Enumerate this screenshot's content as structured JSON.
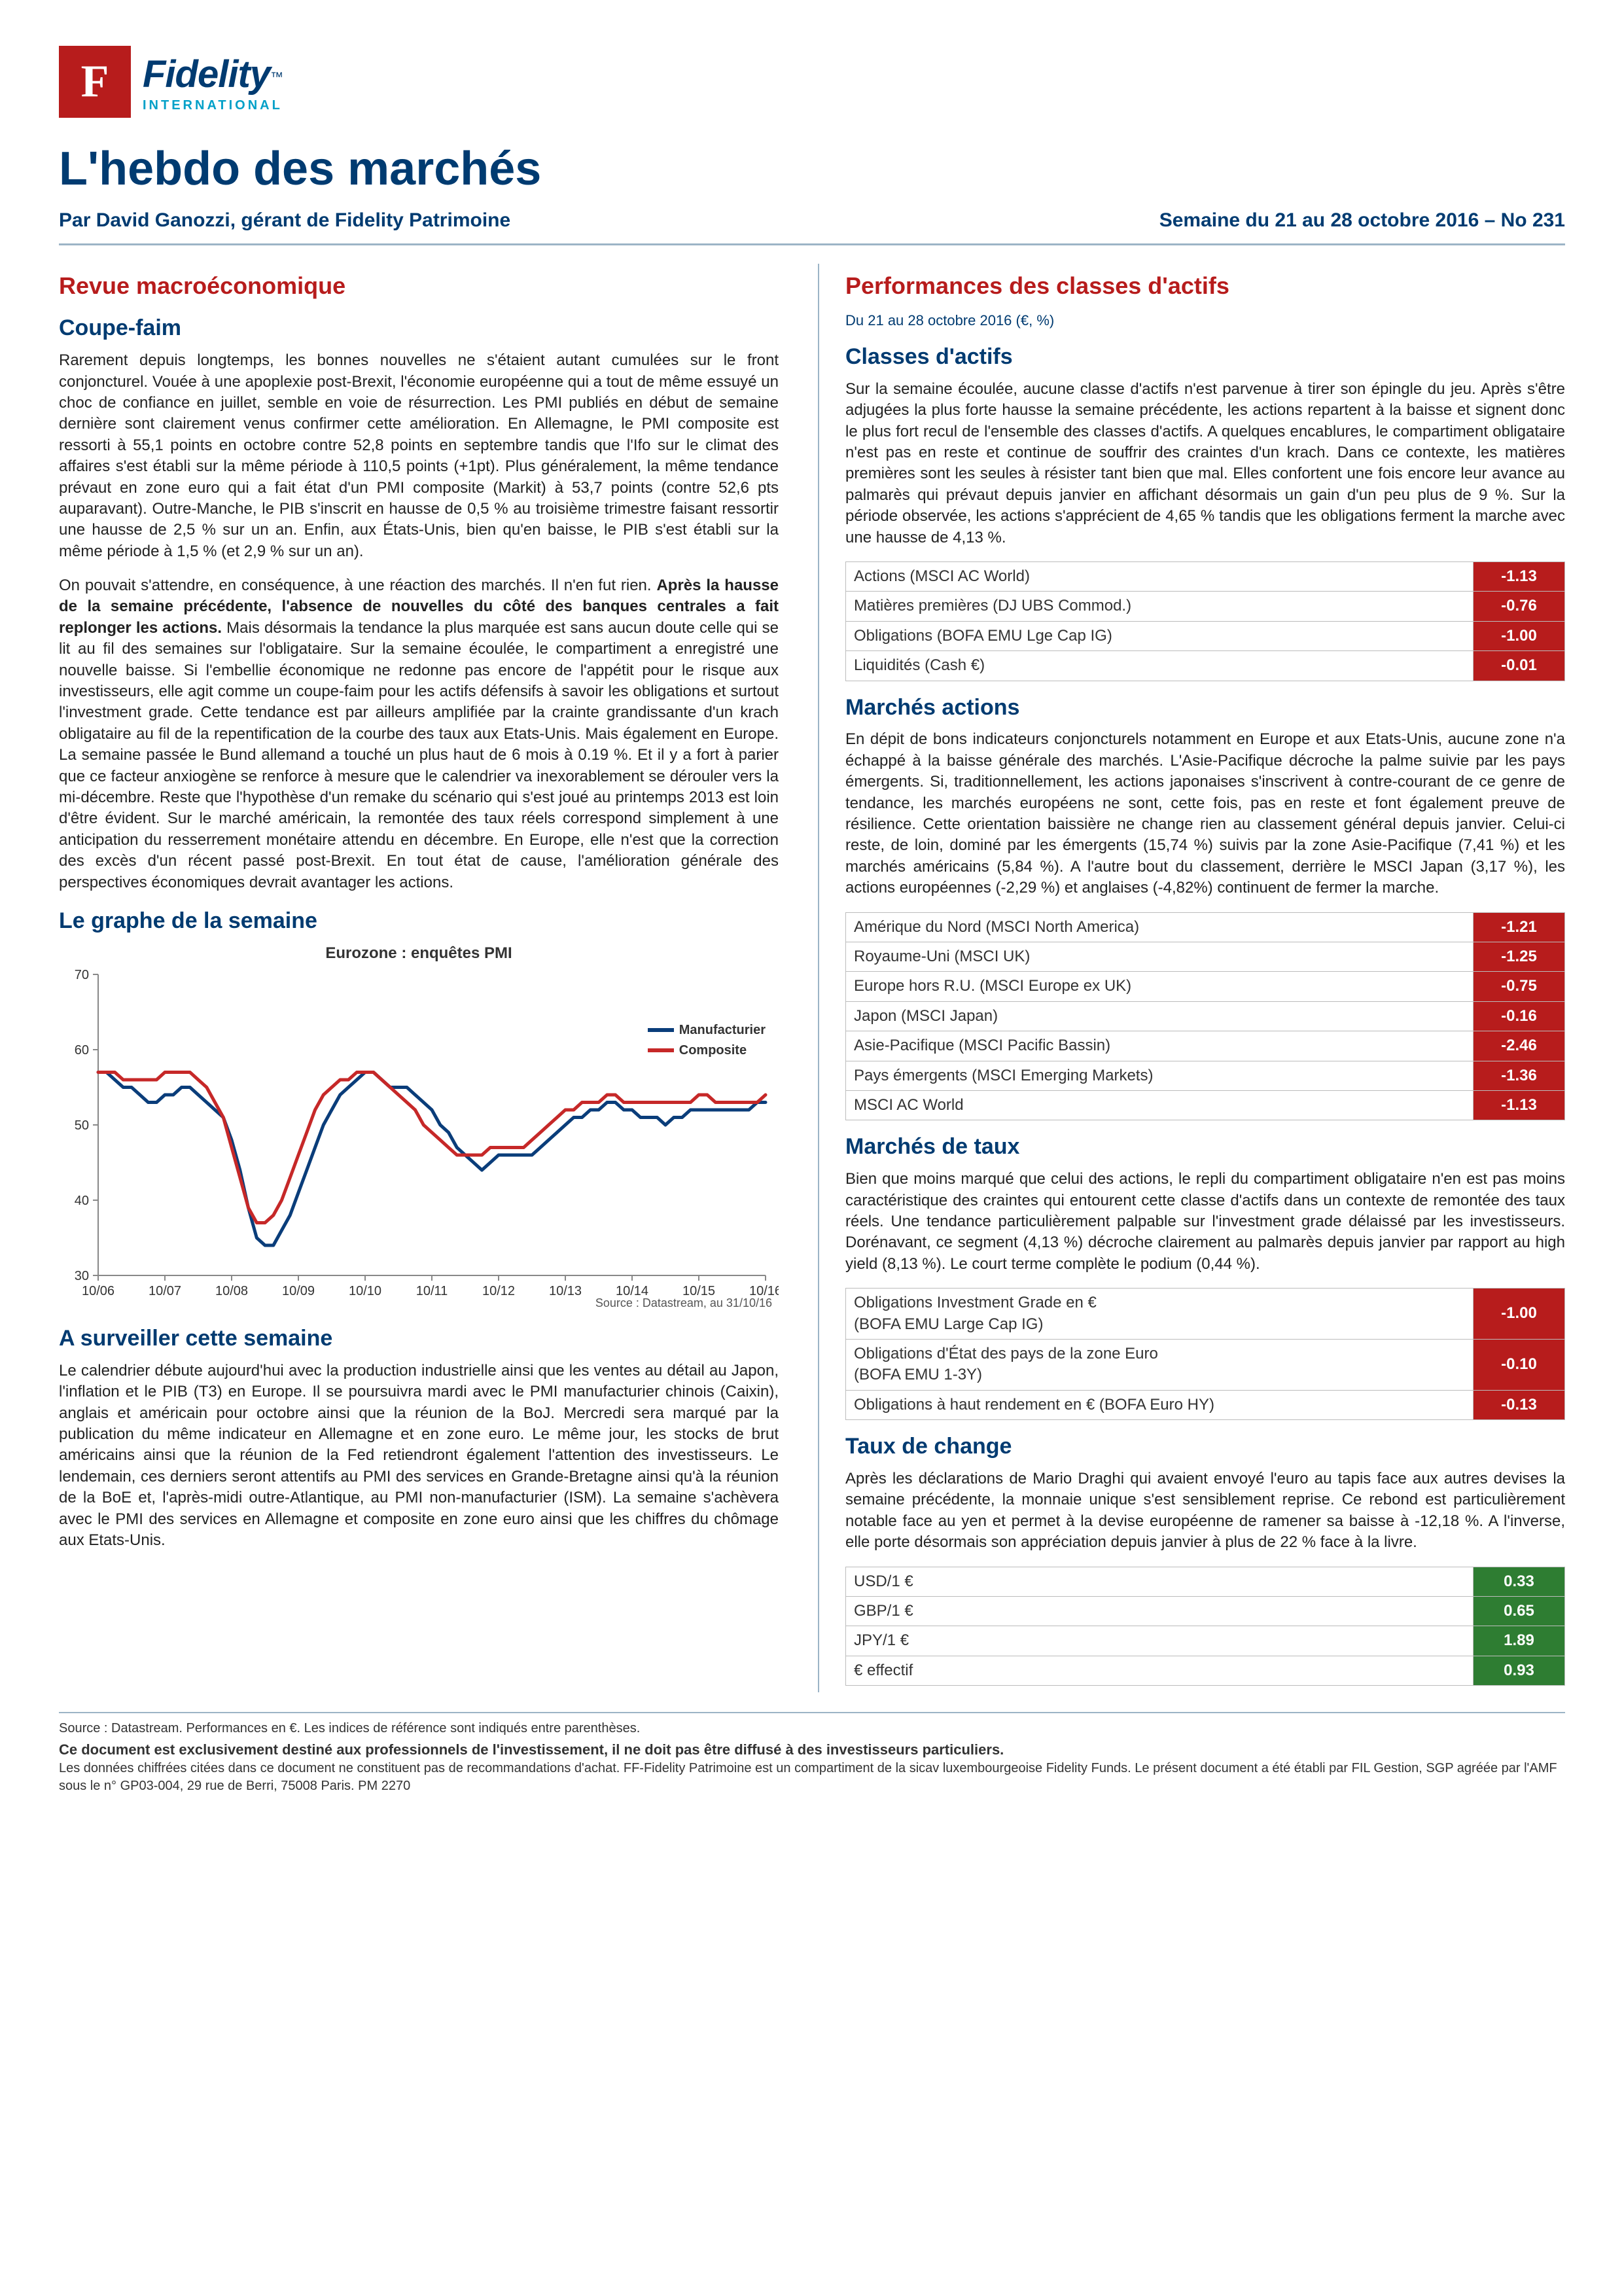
{
  "logo": {
    "letter": "F",
    "name": "Fidelity",
    "tm": "™",
    "sub": "INTERNATIONAL"
  },
  "title": "L'hebdo des marchés",
  "byline": "Par David Ganozzi, gérant de Fidelity Patrimoine",
  "issue": "Semaine du 21 au 28 octobre 2016 – No 231",
  "left": {
    "sec1": "Revue macroéconomique",
    "sec2": "Coupe-faim",
    "p1": "Rarement depuis longtemps, les bonnes nouvelles ne s'étaient autant cumulées sur le front conjoncturel. Vouée à une apoplexie post-Brexit, l'économie européenne qui a tout de même essuyé un choc de confiance en juillet, semble en voie de résurrection. Les PMI publiés en début de semaine dernière sont clairement venus confirmer cette amélioration. En Allemagne, le PMI composite est ressorti à 55,1 points en octobre contre 52,8 points en septembre tandis que l'Ifo sur le climat des affaires s'est établi sur la même période à 110,5 points (+1pt). Plus généralement, la même tendance prévaut en zone euro qui a fait état d'un PMI composite (Markit) à 53,7 points (contre 52,6 pts auparavant). Outre-Manche, le PIB s'inscrit en hausse de 0,5 % au troisième trimestre faisant ressortir une hausse de 2,5 % sur un an. Enfin, aux États-Unis, bien qu'en baisse, le PIB s'est établi sur la même période à 1,5 % (et 2,9 % sur un an).",
    "p2_a": "On pouvait s'attendre, en conséquence, à une réaction des marchés. Il n'en fut rien. ",
    "p2_b": "Après la hausse de la semaine précédente, l'absence de nouvelles du côté des banques centrales a fait replonger les actions.",
    "p2_c": " Mais désormais la tendance la plus marquée est sans aucun doute celle qui se lit au fil des semaines sur l'obligataire. Sur la semaine écoulée, le compartiment a enregistré une nouvelle baisse. Si l'embellie économique ne redonne pas encore de l'appétit pour le risque aux investisseurs, elle agit comme un coupe-faim pour les actifs défensifs à savoir les obligations et surtout l'investment grade. Cette tendance est par ailleurs amplifiée par la crainte grandissante d'un krach obligataire au fil de la repentification de la courbe des taux aux Etats-Unis. Mais également en Europe. La semaine passée le Bund allemand a touché un plus haut de 6 mois à 0.19 %. Et il y a fort à parier que ce facteur anxiogène se renforce à mesure que le calendrier va inexorablement se dérouler vers la mi-décembre. Reste que l'hypothèse d'un remake du scénario qui s'est joué au printemps 2013 est loin d'être évident. Sur le marché américain, la remontée des taux réels correspond simplement à une anticipation du resserrement monétaire attendu en décembre. En Europe, elle n'est que la correction des excès d'un récent passé post-Brexit. En tout état de cause, l'amélioration générale des perspectives économiques devrait avantager les actions.",
    "graph_title": "Le graphe de la semaine",
    "watch_title": "A surveiller cette semaine",
    "p3": "Le calendrier débute aujourd'hui avec la production industrielle ainsi que les ventes au détail au Japon, l'inflation et le PIB (T3) en Europe. Il se poursuivra mardi avec le PMI manufacturier chinois (Caixin), anglais et américain pour octobre ainsi que la réunion de la BoJ. Mercredi sera marqué par la publication du même indicateur en Allemagne et en zone euro. Le même jour, les stocks de brut américains ainsi que la réunion de la Fed retiendront également l'attention des investisseurs. Le lendemain, ces derniers seront attentifs au PMI des services en Grande-Bretagne ainsi qu'à la réunion de la BoE et, l'après-midi outre-Atlantique, au PMI non-manufacturier (ISM). La semaine s'achèvera avec le PMI des services en Allemagne et composite en zone euro ainsi que les chiffres du chômage aux Etats-Unis."
  },
  "chart": {
    "title": "Eurozone : enquêtes PMI",
    "source": "Source : Datastream, au 31/10/16",
    "y_ticks": [
      30,
      40,
      50,
      60,
      70
    ],
    "x_ticks": [
      "10/06",
      "10/07",
      "10/08",
      "10/09",
      "10/10",
      "10/11",
      "10/12",
      "10/13",
      "10/14",
      "10/15",
      "10/16"
    ],
    "ylim": [
      30,
      70
    ],
    "series": [
      {
        "name": "Manufacturier",
        "color": "#0a3d7a",
        "values": [
          57,
          57,
          56,
          55,
          55,
          54,
          53,
          53,
          54,
          54,
          55,
          55,
          54,
          53,
          52,
          51,
          48,
          44,
          39,
          35,
          34,
          34,
          36,
          38,
          41,
          44,
          47,
          50,
          52,
          54,
          55,
          56,
          57,
          57,
          56,
          55,
          55,
          55,
          54,
          53,
          52,
          50,
          49,
          47,
          46,
          45,
          44,
          45,
          46,
          46,
          46,
          46,
          46,
          47,
          48,
          49,
          50,
          51,
          51,
          52,
          52,
          53,
          53,
          52,
          52,
          51,
          51,
          51,
          50,
          51,
          51,
          52,
          52,
          52,
          52,
          52,
          52,
          52,
          52,
          53,
          53
        ]
      },
      {
        "name": "Composite",
        "color": "#c62828",
        "values": [
          57,
          57,
          57,
          56,
          56,
          56,
          56,
          56,
          57,
          57,
          57,
          57,
          56,
          55,
          53,
          51,
          47,
          43,
          39,
          37,
          37,
          38,
          40,
          43,
          46,
          49,
          52,
          54,
          55,
          56,
          56,
          57,
          57,
          57,
          56,
          55,
          54,
          53,
          52,
          50,
          49,
          48,
          47,
          46,
          46,
          46,
          46,
          47,
          47,
          47,
          47,
          47,
          48,
          49,
          50,
          51,
          52,
          52,
          53,
          53,
          53,
          54,
          54,
          53,
          53,
          53,
          53,
          53,
          53,
          53,
          53,
          53,
          54,
          54,
          53,
          53,
          53,
          53,
          53,
          53,
          54
        ]
      }
    ],
    "legend": {
      "s1": "Manufacturier",
      "s2": "Composite"
    },
    "axis_color": "#888",
    "tick_fontsize": 20
  },
  "right": {
    "sec1": "Performances des classes d'actifs",
    "date": "Du 21 au 28 octobre 2016 (€, %)",
    "classes_title": "Classes d'actifs",
    "classes_p": "Sur la semaine écoulée, aucune classe d'actifs n'est parvenue à tirer son épingle du jeu. Après s'être adjugées la plus forte hausse la semaine précédente, les actions repartent à la baisse et signent donc le plus fort recul de l'ensemble des classes d'actifs. A quelques encablures, le compartiment obligataire n'est pas en reste et continue de souffrir des craintes d'un krach. Dans ce contexte, les matières premières sont les seules à résister tant bien que mal. Elles confortent une fois encore leur avance au palmarès qui prévaut depuis janvier en affichant désormais un gain d'un peu plus de 9 %. Sur la période observée, les actions s'apprécient de 4,65 % tandis que les obligations ferment la marche avec une hausse de 4,13 %.",
    "classes_table": [
      {
        "label": "Actions (MSCI AC World)",
        "val": "-1.13",
        "cls": "neg"
      },
      {
        "label": "Matières premières (DJ UBS Commod.)",
        "val": "-0.76",
        "cls": "neg"
      },
      {
        "label": "Obligations (BOFA EMU Lge Cap IG)",
        "val": "-1.00",
        "cls": "neg"
      },
      {
        "label": "Liquidités (Cash €)",
        "val": "-0.01",
        "cls": "neg"
      }
    ],
    "eq_title": "Marchés actions",
    "eq_p": "En dépit de bons indicateurs conjoncturels notamment en Europe et aux Etats-Unis, aucune zone n'a échappé à la baisse générale des marchés. L'Asie-Pacifique décroche la palme suivie par les pays émergents. Si, traditionnellement, les actions japonaises s'inscrivent à contre-courant de ce genre de tendance, les marchés européens ne sont, cette fois, pas en reste et font également preuve de résilience. Cette orientation baissière ne change rien au classement général depuis janvier. Celui-ci reste, de loin, dominé par les émergents (15,74 %) suivis par la zone Asie-Pacifique (7,41 %) et les marchés américains (5,84 %). A l'autre bout du classement, derrière le MSCI Japan (3,17 %), les actions européennes (-2,29 %) et anglaises (-4,82%) continuent de fermer la marche.",
    "eq_table": [
      {
        "label": "Amérique du Nord (MSCI North America)",
        "val": "-1.21",
        "cls": "neg"
      },
      {
        "label": "Royaume-Uni (MSCI UK)",
        "val": "-1.25",
        "cls": "neg"
      },
      {
        "label": "Europe hors R.U. (MSCI Europe ex UK)",
        "val": "-0.75",
        "cls": "neg"
      },
      {
        "label": "Japon (MSCI Japan)",
        "val": "-0.16",
        "cls": "neg"
      },
      {
        "label": "Asie-Pacifique (MSCI Pacific Bassin)",
        "val": "-2.46",
        "cls": "neg"
      },
      {
        "label": "Pays émergents (MSCI Emerging Markets)",
        "val": "-1.36",
        "cls": "neg"
      },
      {
        "label": "MSCI AC World",
        "val": "-1.13",
        "cls": "neg"
      }
    ],
    "fi_title": "Marchés de taux",
    "fi_p": "Bien que moins marqué que celui des actions, le repli du compartiment obligataire n'en est pas moins caractéristique des craintes qui entourent cette classe d'actifs dans un contexte de remontée des taux réels. Une tendance particulièrement palpable sur l'investment grade délaissé par les investisseurs. Dorénavant, ce segment (4,13 %) décroche clairement au palmarès depuis janvier par rapport au high yield (8,13 %). Le court terme complète le podium (0,44 %).",
    "fi_table": [
      {
        "label": "Obligations Investment Grade en €\n(BOFA EMU Large Cap IG)",
        "val": "-1.00",
        "cls": "neg"
      },
      {
        "label": "Obligations d'État des pays de la zone Euro\n(BOFA EMU 1-3Y)",
        "val": "-0.10",
        "cls": "neg"
      },
      {
        "label": "Obligations à haut rendement en € (BOFA Euro HY)",
        "val": "-0.13",
        "cls": "neg"
      }
    ],
    "fx_title": "Taux de change",
    "fx_p": "Après les déclarations de Mario Draghi qui avaient envoyé l'euro au tapis face aux autres devises la semaine précédente, la monnaie unique s'est sensiblement reprise. Ce rebond est particulièrement notable face au yen et permet à la devise européenne de ramener sa baisse à -12,18 %. A l'inverse, elle porte désormais son appréciation depuis janvier à plus de 22 % face à la livre.",
    "fx_table": [
      {
        "label": "USD/1 €",
        "val": "0.33",
        "cls": "pos"
      },
      {
        "label": "GBP/1 €",
        "val": "0.65",
        "cls": "pos"
      },
      {
        "label": "JPY/1 €",
        "val": "1.89",
        "cls": "pos"
      },
      {
        "label": "€ effectif",
        "val": "0.93",
        "cls": "pos"
      }
    ]
  },
  "footer": {
    "src": "Source : Datastream. Performances en €. Les indices de référence sont indiqués entre parenthèses.",
    "disclaimer": "Ce document est exclusivement destiné aux professionnels de l'investissement, il ne doit pas être diffusé à des investisseurs particuliers.",
    "small": "Les données chiffrées citées dans ce document ne constituent pas de recommandations d'achat. FF-Fidelity Patrimoine est un compartiment de la sicav luxembourgeoise Fidelity Funds. Le présent document a été établi par FIL Gestion, SGP agréée par l'AMF sous le n° GP03-004, 29 rue de Berri, 75008 Paris. PM 2270"
  }
}
